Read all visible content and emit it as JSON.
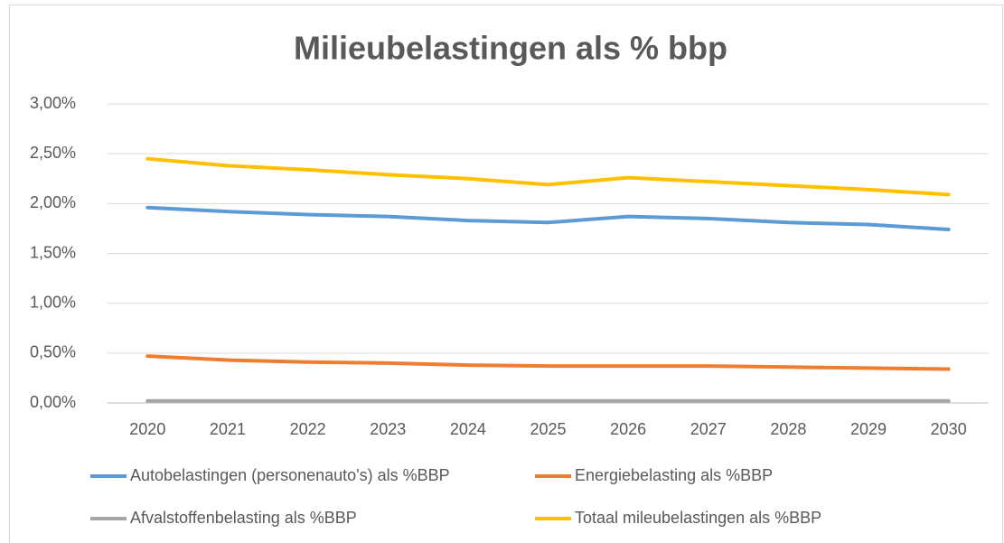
{
  "chart_data": {
    "type": "line",
    "title": "Milieubelastingen als % bbp",
    "categories": [
      "2020",
      "2021",
      "2022",
      "2023",
      "2024",
      "2025",
      "2026",
      "2027",
      "2028",
      "2029",
      "2030"
    ],
    "series": [
      {
        "name": "Autobelastingen (personenauto's) als %BBP",
        "color": "#5b9bd5",
        "values": [
          1.96,
          1.92,
          1.89,
          1.87,
          1.83,
          1.81,
          1.87,
          1.85,
          1.81,
          1.79,
          1.74
        ]
      },
      {
        "name": "Energiebelasting als %BBP",
        "color": "#ed7d31",
        "values": [
          0.47,
          0.43,
          0.41,
          0.4,
          0.38,
          0.37,
          0.37,
          0.37,
          0.36,
          0.35,
          0.34
        ]
      },
      {
        "name": "Afvalstoffenbelasting als %BBP",
        "color": "#a5a5a5",
        "values": [
          0.02,
          0.02,
          0.02,
          0.02,
          0.02,
          0.02,
          0.02,
          0.02,
          0.02,
          0.02,
          0.02
        ]
      },
      {
        "name": "Totaal mileubelastingen als %BBP",
        "color": "#ffc000",
        "values": [
          2.45,
          2.38,
          2.34,
          2.29,
          2.25,
          2.19,
          2.26,
          2.22,
          2.18,
          2.14,
          2.09
        ]
      }
    ],
    "ylim": [
      0,
      3
    ],
    "yticks": [
      {
        "value": 0,
        "label": "0,00%"
      },
      {
        "value": 0.5,
        "label": "0,50%"
      },
      {
        "value": 1,
        "label": "1,00%"
      },
      {
        "value": 1.5,
        "label": "1,50%"
      },
      {
        "value": 2,
        "label": "2,00%"
      },
      {
        "value": 2.5,
        "label": "2,50%"
      },
      {
        "value": 3,
        "label": "3,00%"
      }
    ],
    "grid": true,
    "legend": "bottom"
  }
}
